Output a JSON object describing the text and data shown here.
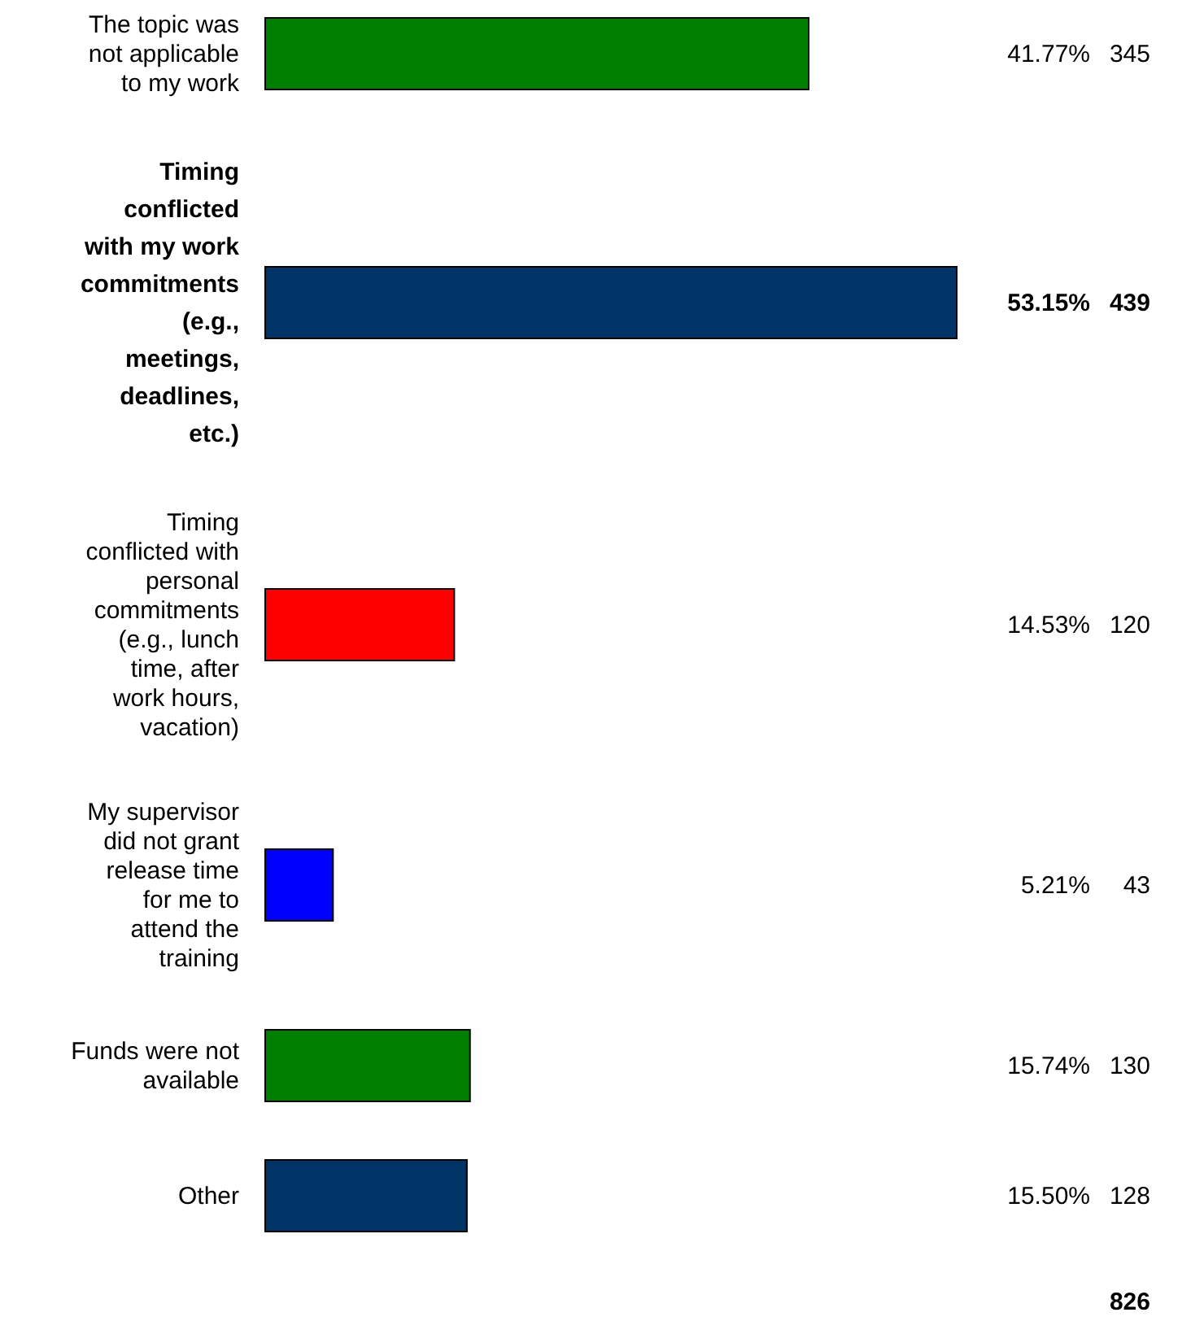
{
  "chart_data": {
    "type": "bar",
    "orientation": "horizontal",
    "categories": [
      "The topic was not applicable to my work",
      "Timing conflicted with my work commitments (e.g., meetings, deadlines, etc.)",
      "Timing conflicted with personal commitments (e.g., lunch time, after work hours, vacation)",
      "My supervisor did not grant release time for me to attend the training",
      "Funds were not available",
      "Other"
    ],
    "values": [
      41.77,
      53.15,
      14.53,
      5.21,
      15.74,
      15.5
    ],
    "colors": [
      "#008000",
      "#003366",
      "#ff0000",
      "#0000ff",
      "#008000",
      "#003366"
    ],
    "value_labels": [
      "41.77%",
      "53.15%",
      "14.53%",
      "5.21%",
      "15.74%",
      "15.50%"
    ],
    "annotations": [
      "345",
      "439",
      "120",
      "43",
      "130",
      "128",
      "826"
    ]
  }
}
